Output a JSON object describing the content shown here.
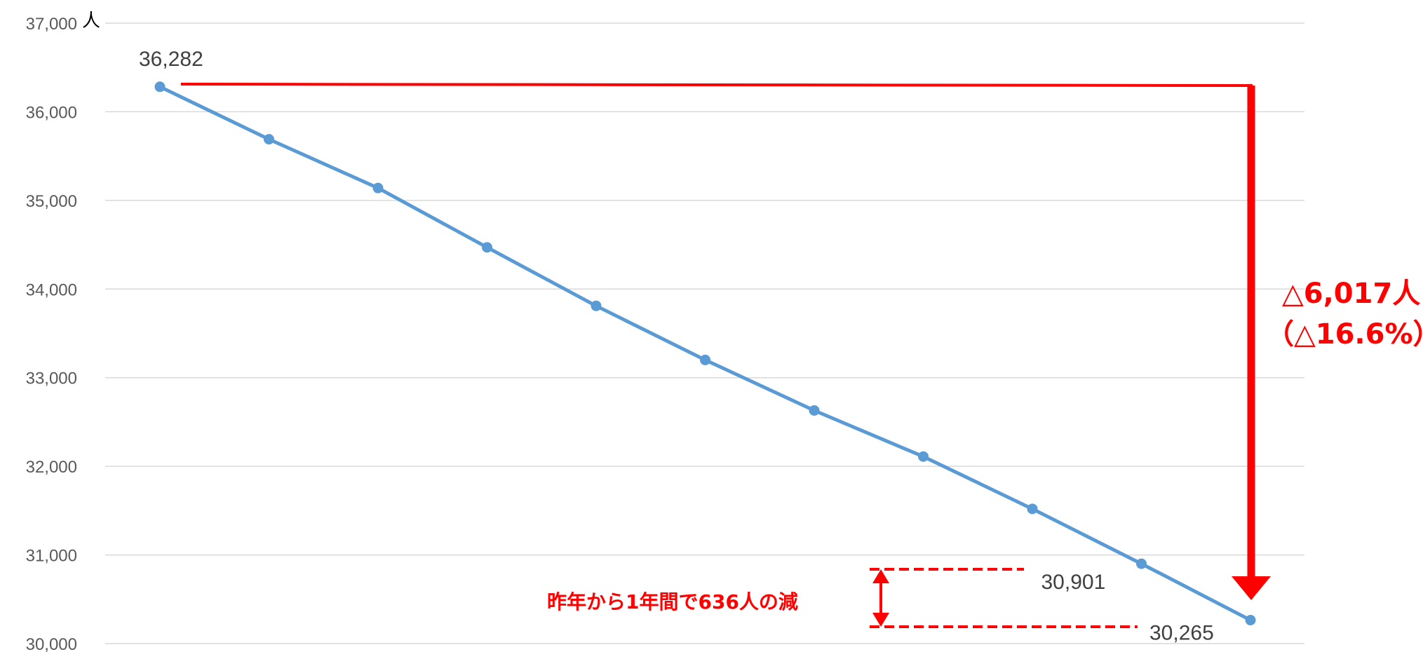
{
  "chart_data": {
    "type": "line",
    "y_unit": "人",
    "ylim": [
      30000,
      37000
    ],
    "y_ticks": [
      30000,
      31000,
      32000,
      33000,
      34000,
      35000,
      36000,
      37000
    ],
    "y_tick_labels": [
      "30,000",
      "31,000",
      "32,000",
      "33,000",
      "34,000",
      "35,000",
      "36,000",
      "37,000"
    ],
    "grid": true,
    "series": [
      {
        "color": "#5b9bd5",
        "values": [
          36282,
          35690,
          35140,
          34470,
          33810,
          33200,
          32630,
          32110,
          31520,
          30901,
          30265
        ]
      }
    ],
    "data_labels": [
      {
        "index": 0,
        "text": "36,282"
      },
      {
        "index": 9,
        "text": "30,901"
      },
      {
        "index": 10,
        "text": "30,265"
      }
    ],
    "annotations": {
      "total_change_line1": "△6,017人",
      "total_change_line2": "（△16.6%）",
      "yearly_change": "昨年から1年間で636人の減",
      "color": "#ff0000"
    }
  }
}
